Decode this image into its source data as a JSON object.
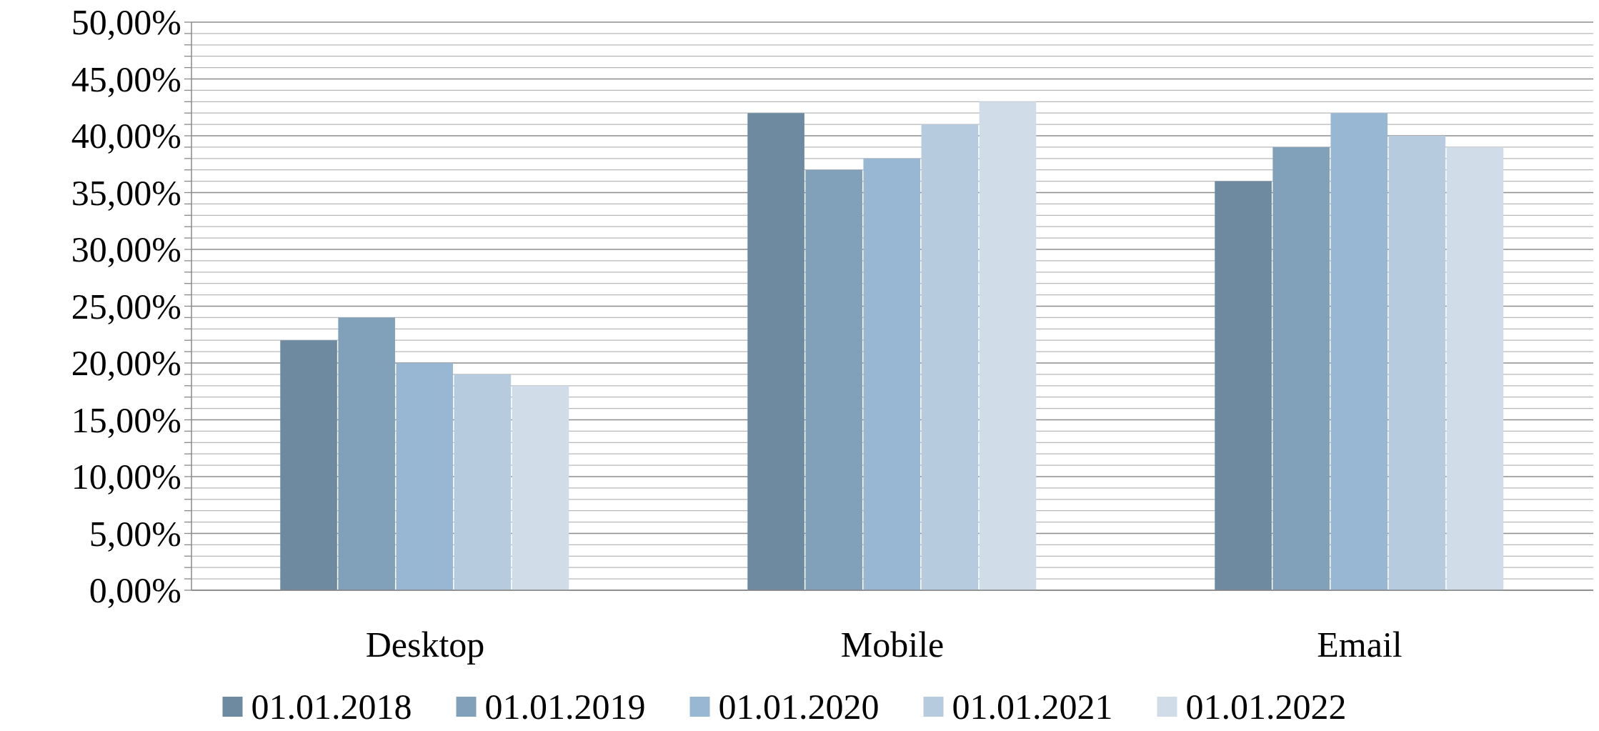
{
  "chart_data": {
    "type": "bar",
    "categories": [
      "Desktop",
      "Mobile",
      "Email"
    ],
    "series": [
      {
        "name": "01.01.2018",
        "color": "#6e8aa0",
        "values": [
          22,
          42,
          36
        ]
      },
      {
        "name": "01.01.2019",
        "color": "#81a1bb",
        "values": [
          24,
          37,
          39
        ]
      },
      {
        "name": "01.01.2020",
        "color": "#97b7d3",
        "values": [
          20,
          38,
          42
        ]
      },
      {
        "name": "01.01.2021",
        "color": "#b6cbde",
        "values": [
          19,
          41,
          40
        ]
      },
      {
        "name": "01.01.2022",
        "color": "#d0dde8",
        "values": [
          18,
          43,
          39
        ]
      }
    ],
    "ylim": [
      0,
      50
    ],
    "yticks": [
      {
        "value": 0,
        "label": "0,00%"
      },
      {
        "value": 1,
        "label": null
      },
      {
        "value": 2,
        "label": null
      },
      {
        "value": 3,
        "label": null
      },
      {
        "value": 4,
        "label": null
      },
      {
        "value": 5,
        "label": "5,00%"
      },
      {
        "value": 6,
        "label": null
      },
      {
        "value": 7,
        "label": null
      },
      {
        "value": 8,
        "label": null
      },
      {
        "value": 9,
        "label": null
      },
      {
        "value": 10,
        "label": "10,00%"
      },
      {
        "value": 11,
        "label": null
      },
      {
        "value": 12,
        "label": null
      },
      {
        "value": 13,
        "label": null
      },
      {
        "value": 14,
        "label": null
      },
      {
        "value": 15,
        "label": "15,00%"
      },
      {
        "value": 16,
        "label": null
      },
      {
        "value": 17,
        "label": null
      },
      {
        "value": 18,
        "label": null
      },
      {
        "value": 19,
        "label": null
      },
      {
        "value": 20,
        "label": "20,00%"
      },
      {
        "value": 21,
        "label": null
      },
      {
        "value": 22,
        "label": null
      },
      {
        "value": 23,
        "label": null
      },
      {
        "value": 24,
        "label": null
      },
      {
        "value": 25,
        "label": "25,00%"
      },
      {
        "value": 26,
        "label": null
      },
      {
        "value": 27,
        "label": null
      },
      {
        "value": 28,
        "label": null
      },
      {
        "value": 29,
        "label": null
      },
      {
        "value": 30,
        "label": "30,00%"
      },
      {
        "value": 31,
        "label": null
      },
      {
        "value": 32,
        "label": null
      },
      {
        "value": 33,
        "label": null
      },
      {
        "value": 34,
        "label": null
      },
      {
        "value": 35,
        "label": "35,00%"
      },
      {
        "value": 36,
        "label": null
      },
      {
        "value": 37,
        "label": null
      },
      {
        "value": 38,
        "label": null
      },
      {
        "value": 39,
        "label": null
      },
      {
        "value": 40,
        "label": "40,00%"
      },
      {
        "value": 41,
        "label": null
      },
      {
        "value": 42,
        "label": null
      },
      {
        "value": 43,
        "label": null
      },
      {
        "value": 44,
        "label": null
      },
      {
        "value": 45,
        "label": "45,00%"
      },
      {
        "value": 46,
        "label": null
      },
      {
        "value": 47,
        "label": null
      },
      {
        "value": 48,
        "label": null
      },
      {
        "value": 49,
        "label": null
      },
      {
        "value": 50,
        "label": "50,00%"
      }
    ],
    "grid": "y",
    "legend": "bottom"
  }
}
